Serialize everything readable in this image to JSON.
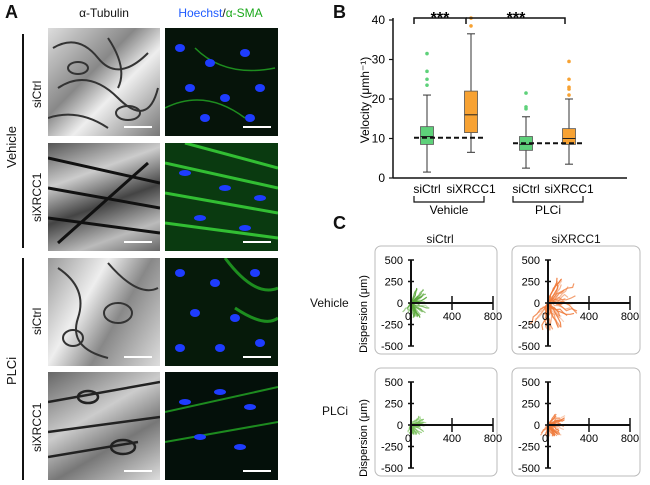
{
  "figure": {
    "panel_a": {
      "letter": "A",
      "col_headers": {
        "tubulin": "α-Tubulin",
        "hoechst": "Hoechst",
        "slash": "/",
        "sma": "α-SMA"
      },
      "groups": [
        "Vehicle",
        "PLCi"
      ],
      "rows": [
        "siCtrl",
        "siXRCC1",
        "siCtrl",
        "siXRCC1"
      ]
    },
    "panel_b": {
      "letter": "B",
      "ylabel": "Velocity (μmh⁻¹)",
      "yticks": [
        "0",
        "10",
        "20",
        "30",
        "40"
      ],
      "sig": [
        "***",
        "***"
      ],
      "xlabels": [
        "siCtrl",
        "siXRCC1",
        "siCtrl",
        "siXRCC1"
      ],
      "groups": [
        "Vehicle",
        "PLCi"
      ]
    },
    "panel_c": {
      "letter": "C",
      "col_headers": [
        "siCtrl",
        "siXRCC1"
      ],
      "row_labels": [
        "Vehicle",
        "PLCi"
      ],
      "ylabel": "Dispersion (μm)",
      "yticks": [
        "500",
        "250",
        "0",
        "-250",
        "-500"
      ],
      "xticks": [
        "0",
        "400",
        "800"
      ]
    },
    "colors": {
      "green": "#5ed17a",
      "orange": "#f7a233",
      "nuclei": "#1e3cff",
      "actin": "#28c028"
    }
  },
  "chart_data": [
    {
      "type": "box",
      "title": "",
      "xlabel": "",
      "ylabel": "Velocity (μmh⁻¹)",
      "ylim": [
        0,
        40
      ],
      "categories": [
        "siCtrl",
        "siXRCC1",
        "siCtrl",
        "siXRCC1"
      ],
      "groups": [
        "Vehicle",
        "Vehicle",
        "PLCi",
        "PLCi"
      ],
      "series": [
        {
          "category": "siCtrl",
          "group": "Vehicle",
          "min": 1.5,
          "q1": 8.5,
          "median": 10.5,
          "q3": 13,
          "max": 21,
          "outliers": [
            23.5,
            25,
            27,
            31.5
          ],
          "color": "#5ed17a"
        },
        {
          "category": "siXRCC1",
          "group": "Vehicle",
          "min": 6.5,
          "q1": 11.5,
          "median": 16,
          "q3": 22,
          "max": 36.5,
          "outliers": [
            38.5,
            40.5
          ],
          "color": "#f7a233"
        },
        {
          "category": "siCtrl",
          "group": "PLCi",
          "min": 2.5,
          "q1": 7,
          "median": 8.5,
          "q3": 10.5,
          "max": 15.5,
          "outliers": [
            17.5,
            18,
            21.5
          ],
          "color": "#5ed17a"
        },
        {
          "category": "siXRCC1",
          "group": "PLCi",
          "min": 3.5,
          "q1": 8.5,
          "median": 10,
          "q3": 12.5,
          "max": 20,
          "outliers": [
            21,
            22.5,
            23,
            25,
            29.5
          ],
          "color": "#f7a233"
        }
      ],
      "reference_lines": [
        10.2,
        8.8
      ],
      "significance": [
        [
          "Vehicle siCtrl",
          "Vehicle siXRCC1",
          "***"
        ],
        [
          "Vehicle siXRCC1",
          "PLCi siXRCC1",
          "***"
        ]
      ]
    },
    {
      "type": "scatter",
      "title": "",
      "ylabel": "Dispersion (μm)",
      "xlim": [
        0,
        800
      ],
      "ylim": [
        -500,
        500
      ],
      "panels": [
        {
          "row": "Vehicle",
          "col": "siCtrl",
          "color": "#5aa83a",
          "x_extent": 150,
          "y_extent": 180
        },
        {
          "row": "Vehicle",
          "col": "siXRCC1",
          "color": "#ef7a3a",
          "x_extent": 300,
          "y_extent": 350
        },
        {
          "row": "PLCi",
          "col": "siCtrl",
          "color": "#78bf5a",
          "x_extent": 120,
          "y_extent": 120
        },
        {
          "row": "PLCi",
          "col": "siXRCC1",
          "color": "#ef7a3a",
          "x_extent": 150,
          "y_extent": 150
        }
      ]
    }
  ]
}
